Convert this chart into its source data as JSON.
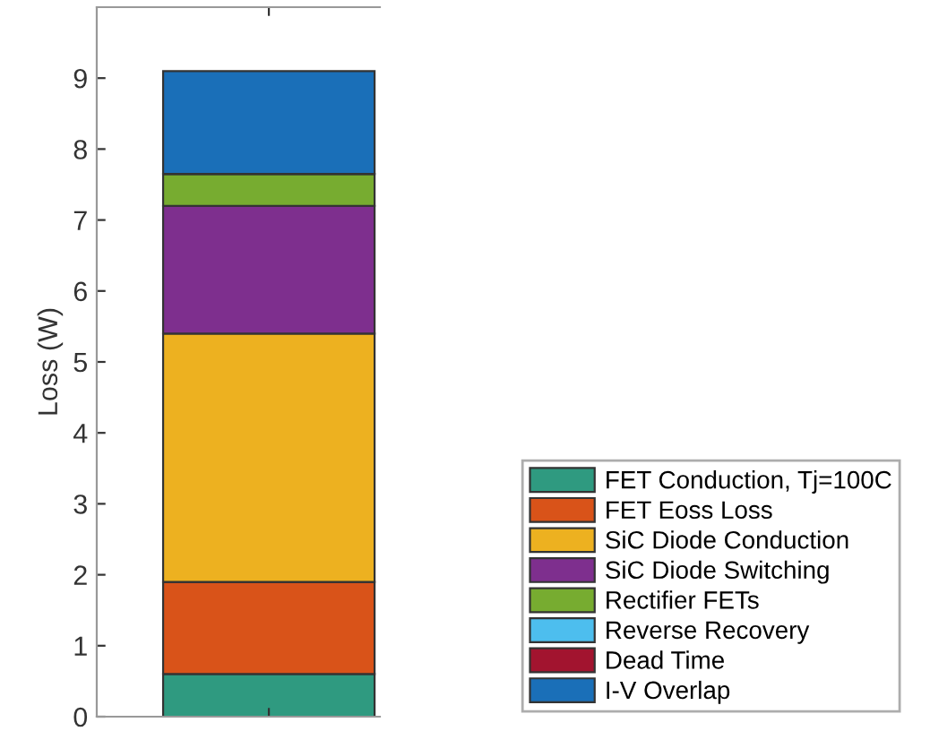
{
  "chart_data": {
    "type": "bar",
    "stacked": true,
    "ylabel": "Loss (W)",
    "categories": [
      null
    ],
    "series": [
      {
        "name": "FET Conduction, Tj=100C",
        "color": "#2f9a80",
        "values": [
          0.6
        ]
      },
      {
        "name": "FET Eoss Loss",
        "color": "#d95319",
        "values": [
          1.3
        ]
      },
      {
        "name": "SiC Diode Conduction",
        "color": "#edb120",
        "values": [
          3.5
        ]
      },
      {
        "name": "SiC Diode Switching",
        "color": "#7e2f8e",
        "values": [
          1.8
        ]
      },
      {
        "name": "Rectifier FETs",
        "color": "#77ac30",
        "values": [
          0.45
        ]
      },
      {
        "name": "Reverse Recovery",
        "color": "#4dbeee",
        "values": [
          0
        ]
      },
      {
        "name": "Dead Time",
        "color": "#a2142f",
        "values": [
          0
        ]
      },
      {
        "name": "I-V Overlap",
        "color": "#1a6fb8",
        "values": [
          1.45
        ]
      }
    ],
    "ylim": [
      0,
      10
    ],
    "yticks": [
      0,
      1,
      2,
      3,
      4,
      5,
      6,
      7,
      8,
      9
    ],
    "grid": false,
    "legend": "bottom right"
  }
}
